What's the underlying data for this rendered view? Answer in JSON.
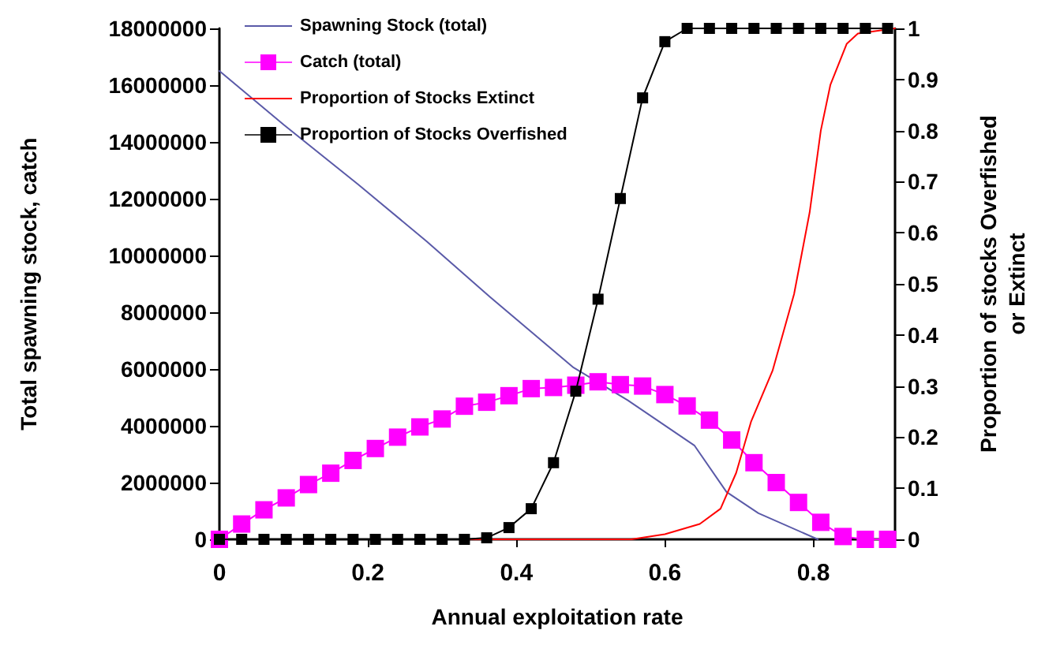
{
  "chart_data": {
    "type": "line",
    "xlabel": "Annual exploitation rate",
    "ylabel": "Total spawning stock, catch",
    "y2label": "Proportion of stocks Overfished\nor Extinct",
    "xlim": [
      0,
      0.91
    ],
    "xticks": [
      0,
      0.2,
      0.4,
      0.6,
      0.8
    ],
    "ylim": [
      0,
      18000000
    ],
    "yticks": [
      0,
      2000000,
      4000000,
      6000000,
      8000000,
      10000000,
      12000000,
      14000000,
      16000000,
      18000000
    ],
    "y2lim": [
      0,
      1
    ],
    "y2ticks": [
      0,
      0.1,
      0.2,
      0.3,
      0.4,
      0.5,
      0.6,
      0.7,
      0.8,
      0.9,
      1
    ],
    "legend": "top left",
    "grid": false,
    "series": [
      {
        "name": "Spawning Stock (total)",
        "color": "#5a5aa8",
        "marker": "none",
        "x": [
          0,
          0.087,
          0.187,
          0.279,
          0.364,
          0.477,
          0.55,
          0.64,
          0.683,
          0.726,
          0.806
        ],
        "values": [
          16500000,
          14600000,
          12500000,
          10500000,
          8550000,
          6050000,
          4900000,
          3300000,
          1670000,
          920000,
          0
        ]
      },
      {
        "name": "Catch (total)",
        "color": "#ff00ff",
        "marker": "square",
        "x": [
          0,
          0.03,
          0.06,
          0.09,
          0.12,
          0.15,
          0.18,
          0.21,
          0.24,
          0.27,
          0.3,
          0.33,
          0.36,
          0.39,
          0.42,
          0.45,
          0.48,
          0.51,
          0.54,
          0.57,
          0.6,
          0.63,
          0.66,
          0.69,
          0.72,
          0.75,
          0.78,
          0.81,
          0.84,
          0.87,
          0.9
        ],
        "values": [
          0,
          540000,
          1040000,
          1460000,
          1930000,
          2330000,
          2780000,
          3200000,
          3600000,
          3960000,
          4240000,
          4690000,
          4830000,
          5060000,
          5310000,
          5350000,
          5430000,
          5550000,
          5450000,
          5400000,
          5100000,
          4700000,
          4200000,
          3500000,
          2700000,
          2000000,
          1300000,
          600000,
          100000,
          0,
          0
        ]
      },
      {
        "name": "Proportion of Stocks Extinct",
        "color": "#ff0000",
        "marker": "none",
        "axis": "y2",
        "x": [
          0,
          0.555,
          0.6,
          0.647,
          0.675,
          0.696,
          0.716,
          0.745,
          0.774,
          0.795,
          0.81,
          0.823,
          0.845,
          0.86,
          0.91
        ],
        "values": [
          0,
          0,
          0.01,
          0.03,
          0.06,
          0.13,
          0.23,
          0.33,
          0.48,
          0.64,
          0.8,
          0.89,
          0.97,
          0.99,
          1
        ]
      },
      {
        "name": "Proportion of Stocks Overfished",
        "color": "#000000",
        "marker": "square",
        "axis": "y2",
        "x": [
          0,
          0.03,
          0.06,
          0.09,
          0.12,
          0.15,
          0.18,
          0.21,
          0.24,
          0.27,
          0.3,
          0.33,
          0.36,
          0.39,
          0.42,
          0.45,
          0.48,
          0.51,
          0.54,
          0.57,
          0.6,
          0.63,
          0.66,
          0.69,
          0.72,
          0.75,
          0.78,
          0.81,
          0.84,
          0.87,
          0.9
        ],
        "values": [
          0,
          0,
          0,
          0,
          0,
          0,
          0,
          0,
          0,
          0,
          0,
          0,
          0.003,
          0.023,
          0.06,
          0.15,
          0.29,
          0.47,
          0.667,
          0.864,
          0.974,
          1,
          1,
          1,
          1,
          1,
          1,
          1,
          1,
          1,
          1
        ]
      }
    ]
  }
}
